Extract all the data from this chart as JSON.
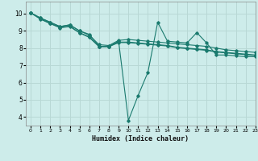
{
  "title": "",
  "xlabel": "Humidex (Indice chaleur)",
  "ylabel": "",
  "bg_color": "#cdecea",
  "grid_color": "#b8d8d5",
  "line_color": "#1a7a6e",
  "xlim": [
    -0.5,
    23
  ],
  "ylim": [
    3.5,
    10.7
  ],
  "yticks": [
    4,
    5,
    6,
    7,
    8,
    9,
    10
  ],
  "xticks": [
    0,
    1,
    2,
    3,
    4,
    5,
    6,
    7,
    8,
    9,
    10,
    11,
    12,
    13,
    14,
    15,
    16,
    17,
    18,
    19,
    20,
    21,
    22,
    23
  ],
  "series": [
    [
      10.05,
      9.75,
      9.5,
      9.25,
      9.35,
      9.0,
      8.8,
      8.1,
      8.1,
      8.4,
      3.8,
      5.25,
      6.6,
      9.5,
      8.4,
      8.35,
      8.3,
      8.9,
      8.3,
      7.6,
      7.6,
      7.55,
      7.5,
      7.5
    ],
    [
      10.05,
      9.75,
      9.5,
      9.25,
      9.35,
      9.0,
      8.75,
      8.2,
      8.15,
      8.45,
      8.5,
      8.45,
      8.4,
      8.35,
      8.3,
      8.25,
      8.2,
      8.15,
      8.1,
      8.0,
      7.9,
      7.85,
      7.8,
      7.75
    ],
    [
      10.05,
      9.7,
      9.45,
      9.2,
      9.28,
      8.9,
      8.65,
      8.1,
      8.1,
      8.35,
      8.35,
      8.3,
      8.25,
      8.2,
      8.15,
      8.05,
      8.0,
      7.95,
      7.9,
      7.8,
      7.75,
      7.7,
      7.65,
      7.6
    ],
    [
      10.05,
      9.68,
      9.42,
      9.18,
      9.25,
      8.88,
      8.62,
      8.08,
      8.08,
      8.32,
      8.32,
      8.27,
      8.22,
      8.17,
      8.12,
      8.02,
      7.97,
      7.92,
      7.87,
      7.77,
      7.72,
      7.67,
      7.62,
      7.57
    ]
  ]
}
